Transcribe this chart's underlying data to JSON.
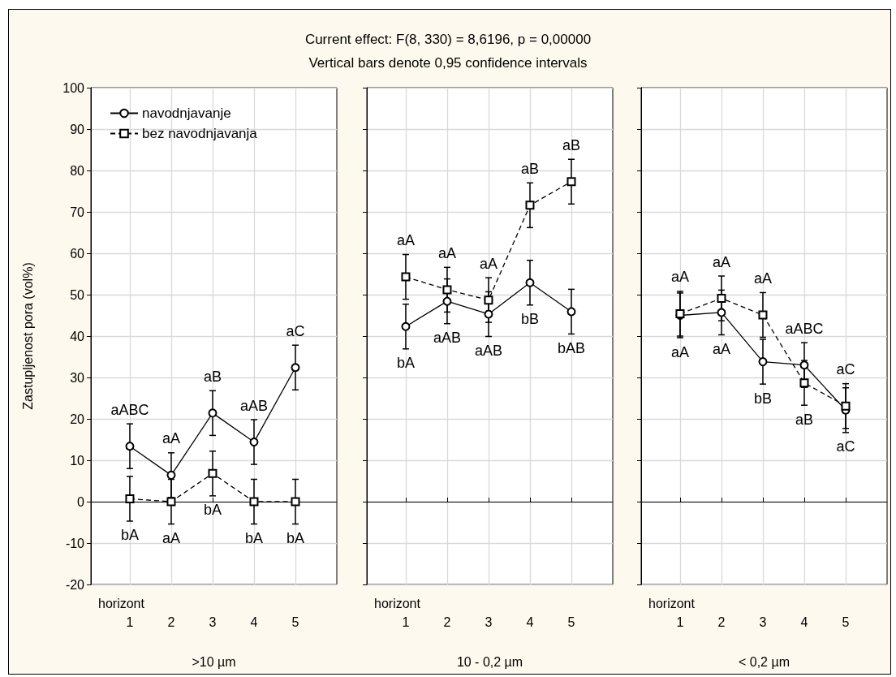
{
  "chart_data": [
    {
      "type": "line",
      "ylabel": "Zastupljenost pora (vol%)",
      "xlabel": "horizont",
      "x": [
        1,
        2,
        3,
        4,
        5
      ],
      "xlim": [
        0.06,
        6.0
      ],
      "xticks": [
        1,
        2,
        3,
        4,
        5
      ],
      "ylim": [
        -20,
        100
      ],
      "yticks": [
        -20,
        -10,
        0,
        10,
        20,
        30,
        40,
        50,
        60,
        70,
        80,
        90,
        100
      ],
      "grid": true,
      "legend": "top left",
      "series": [
        {
          "name": "navodnjavanje",
          "color": "#000000",
          "marker": "circle",
          "line_style": "solid",
          "values": [
            13.4,
            6.4,
            21.4,
            14.4,
            32.4
          ],
          "errors": [
            5.4,
            5.4,
            5.4,
            5.4,
            5.4
          ],
          "value_labels": [
            "aABC",
            "aA",
            "aB",
            "aAB",
            "aC"
          ]
        },
        {
          "name": "bez navodnjavanja",
          "color": "#000000",
          "marker": "square",
          "line_style": "dashed",
          "values": [
            0.7,
            0,
            6.8,
            0,
            0
          ],
          "errors": [
            5.4,
            5.4,
            5.4,
            5.4,
            5.4
          ],
          "value_labels": [
            "bA",
            "aA",
            "bA",
            "bA",
            "bA"
          ]
        }
      ],
      "annotations": [
        ">10 µm"
      ]
    },
    {
      "type": "line",
      "title": "Current effect: F(8, 330) = 8,6196, p = 0,00000",
      "subtitle": "Vertical bars denote 0,95 confidence intervals",
      "xlabel": "horizont",
      "x": [
        1,
        2,
        3,
        4,
        5
      ],
      "xlim": [
        0.06,
        6.0
      ],
      "xticks": [
        1,
        2,
        3,
        4,
        5
      ],
      "ylim": [
        -20,
        100
      ],
      "yticks": [
        -20,
        -10,
        0,
        10,
        20,
        30,
        40,
        50,
        60,
        70,
        80,
        90,
        100
      ],
      "grid": true,
      "tick_labels": "x",
      "series": [
        {
          "color": "#000000",
          "marker": "circle",
          "line_style": "solid",
          "values": [
            42.3,
            48.4,
            45.3,
            52.9,
            45.9
          ],
          "errors": [
            5.4,
            5.4,
            5.4,
            5.4,
            5.4
          ],
          "value_labels": [
            "bA",
            "aAB",
            "aAB",
            "bB",
            "bAB"
          ]
        },
        {
          "color": "#000000",
          "marker": "square",
          "line_style": "dashed",
          "values": [
            54.3,
            51.2,
            48.7,
            71.6,
            77.3
          ],
          "errors": [
            5.4,
            5.4,
            5.4,
            5.4,
            5.4
          ],
          "value_labels": [
            "aA",
            "aA",
            "aA",
            "aB",
            "aB"
          ]
        }
      ],
      "annotations": [
        "10 - 0,2 µm"
      ]
    },
    {
      "type": "line",
      "xlabel": "horizont",
      "x": [
        1,
        2,
        3,
        4,
        5
      ],
      "xlim": [
        0.06,
        6.0
      ],
      "xticks": [
        1,
        2,
        3,
        4,
        5
      ],
      "ylim": [
        -20,
        100
      ],
      "yticks": [
        -20,
        -10,
        0,
        10,
        20,
        30,
        40,
        50,
        60,
        70,
        80,
        90,
        100
      ],
      "grid": true,
      "tick_labels": "x",
      "series": [
        {
          "color": "#000000",
          "marker": "circle",
          "line_style": "solid",
          "values": [
            45.0,
            45.7,
            33.8,
            33.0,
            22.1
          ],
          "errors": [
            5.4,
            5.4,
            5.4,
            5.4,
            5.4
          ],
          "value_labels": [
            "aA",
            "aA",
            "bB",
            "aABC",
            "aC"
          ]
        },
        {
          "color": "#000000",
          "marker": "square",
          "line_style": "dashed",
          "values": [
            45.4,
            49.1,
            45.1,
            28.7,
            23.1
          ],
          "errors": [
            5.4,
            5.4,
            5.4,
            5.4,
            5.4
          ],
          "value_labels": [
            "aA",
            "aA",
            "aA",
            "aB",
            "aC"
          ]
        }
      ],
      "annotations": [
        "< 0,2 µm"
      ]
    }
  ]
}
